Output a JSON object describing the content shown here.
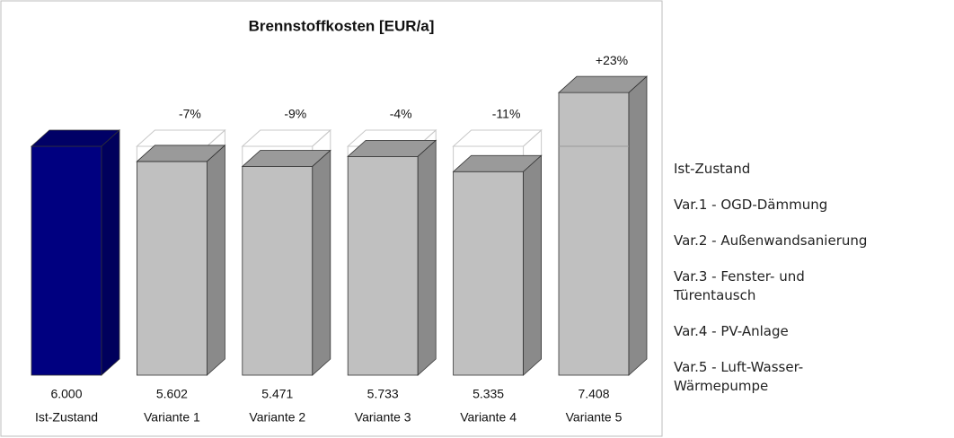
{
  "chart_data": {
    "type": "bar",
    "title": "Brennstoffkosten  [EUR/a]",
    "categories": [
      "Ist-Zustand",
      "Variante 1",
      "Variante 2",
      "Variante 3",
      "Variante 4",
      "Variante 5"
    ],
    "values": [
      6000,
      5602,
      5471,
      5733,
      5335,
      7408
    ],
    "value_labels": [
      "6.000",
      "5.602",
      "5.471",
      "5.733",
      "5.335",
      "7.408"
    ],
    "change_labels": [
      null,
      "-7%",
      "-9%",
      "-4%",
      "-11%",
      "+23%"
    ],
    "colors": [
      "#000080",
      "#c0c0c0",
      "#c0c0c0",
      "#c0c0c0",
      "#c0c0c0",
      "#c0c0c0"
    ],
    "ylim": [
      0,
      9600
    ]
  },
  "legend_list": [
    "Ist-Zustand",
    "Var.1 - OGD-Dämmung",
    "Var.2 - Außenwandsanierung",
    "Var.3 - Fenster- und Türentausch",
    "Var.4 - PV-Anlage",
    "Var.5 - Luft-Wasser-Wärmepumpe"
  ]
}
